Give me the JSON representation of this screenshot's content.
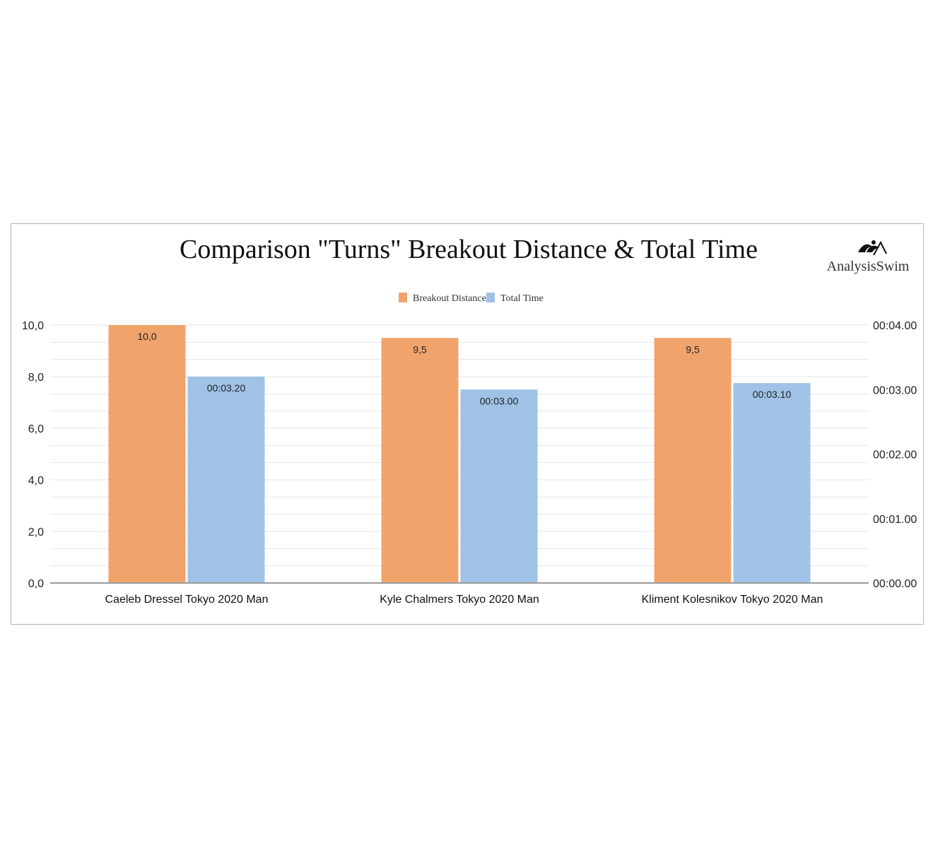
{
  "logo": {
    "text": "AnalysisSwim"
  },
  "colors": {
    "breakout": "#f0a46c",
    "total": "#9fc2e6",
    "grid": "#e6e6e6",
    "axis": "#9a9a9a"
  },
  "chart_data": {
    "type": "bar",
    "title": "Comparison \"Turns\" Breakout Distance & Total Time",
    "legend_position": "top",
    "grid": true,
    "categories": [
      "Caeleb Dressel Tokyo 2020 Man",
      "Kyle Chalmers Tokyo 2020 Man",
      "Kliment Kolesnikov Tokyo 2020 Man"
    ],
    "series": [
      {
        "name": "Breakout Distance",
        "axis": "left",
        "values": [
          10.0,
          9.5,
          9.5
        ],
        "labels": [
          "10,0",
          "9,5",
          "9,5"
        ]
      },
      {
        "name": "Total Time",
        "axis": "right",
        "values": [
          3.2,
          3.0,
          3.1
        ],
        "labels": [
          "00:03.20",
          "00:03.00",
          "00:03.10"
        ]
      }
    ],
    "y_left": {
      "ylim": [
        0,
        10
      ],
      "ticks": [
        0,
        2,
        4,
        6,
        8,
        10
      ],
      "tick_labels": [
        "0,0",
        "2,0",
        "4,0",
        "6,0",
        "8,0",
        "10,0"
      ]
    },
    "y_right": {
      "ylim": [
        0,
        4
      ],
      "ticks": [
        0,
        1,
        2,
        3,
        4
      ],
      "tick_labels": [
        "00:00.00",
        "00:01.00",
        "00:02.00",
        "00:03.00",
        "00:04.00"
      ]
    }
  }
}
